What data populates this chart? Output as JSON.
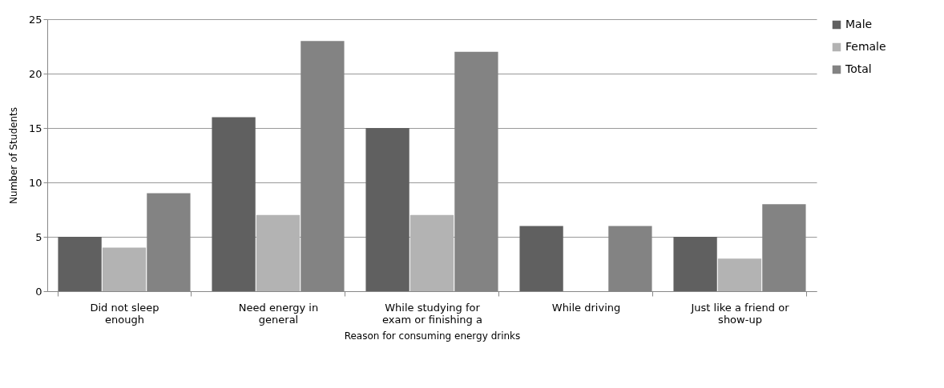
{
  "chart_data": {
    "type": "bar",
    "xlabel": "Reason for consuming energy drinks",
    "ylabel": "Number of Students",
    "categories": [
      "Did not sleep enough",
      "Need energy in general",
      "While studying for exam or finishing a",
      "While driving",
      "Just like a friend or show-up"
    ],
    "series": [
      {
        "name": "Male",
        "color": "#606060",
        "values": [
          5,
          16,
          15,
          6,
          5
        ]
      },
      {
        "name": "Female",
        "color": "#b3b3b3",
        "values": [
          4,
          7,
          7,
          0,
          3
        ]
      },
      {
        "name": "Total",
        "color": "#838383",
        "values": [
          9,
          23,
          22,
          6,
          8
        ]
      }
    ],
    "ylim": [
      0,
      25
    ],
    "yticks": [
      0,
      5,
      10,
      15,
      20,
      25
    ],
    "grid": "y",
    "legend": "right"
  }
}
